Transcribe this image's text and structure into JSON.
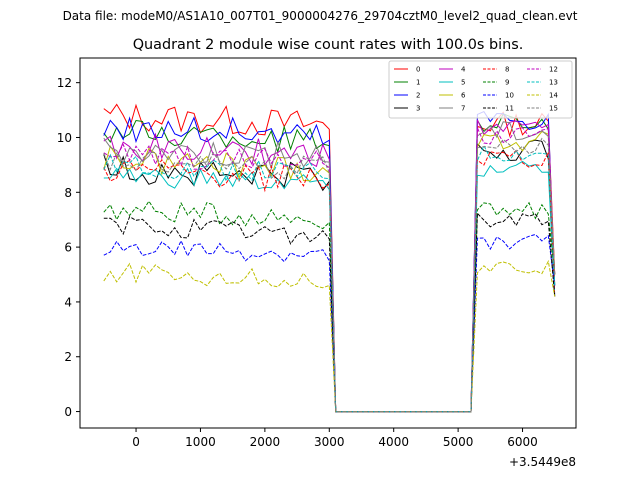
{
  "suptitle": "Data file: modeM0/AS1A10_007T01_9000004276_29704cztM0_level2_quad_clean.evt",
  "chart_data": {
    "type": "line",
    "title": "Quadrant 2 module wise count rates with 100.0s bins.",
    "xlabel": "",
    "ylabel": "",
    "x_offset_label": "+3.5449e8",
    "xlim": [
      -870,
      6830
    ],
    "ylim": [
      -0.6,
      12.9
    ],
    "xticks": [
      0,
      1000,
      2000,
      3000,
      4000,
      5000,
      6000
    ],
    "xtick_labels": [
      "0",
      "1000",
      "2000",
      "3000",
      "4000",
      "5000",
      "6000"
    ],
    "yticks": [
      0,
      2,
      4,
      6,
      8,
      10,
      12
    ],
    "ytick_labels": [
      "0",
      "2",
      "4",
      "6",
      "8",
      "10",
      "12"
    ],
    "grid": false,
    "legend_position": "top-right",
    "legend_columns": 4,
    "gti": {
      "seg1_start": -500,
      "seg1_end": 3000,
      "gap_start": 3100,
      "gap_end": 5200,
      "seg2_start": 5300,
      "seg2_end": 6500,
      "step": 100,
      "last_bin_value": 5
    },
    "series": [
      {
        "name": "0",
        "color": "#ff0000",
        "dash": "solid",
        "level1": 10.8,
        "level2": 10.5,
        "amp": 0.55
      },
      {
        "name": "1",
        "color": "#008000",
        "dash": "solid",
        "level1": 10.2,
        "level2": 10.6,
        "amp": 0.5
      },
      {
        "name": "2",
        "color": "#0000ff",
        "dash": "solid",
        "level1": 10.4,
        "level2": 10.7,
        "amp": 0.55
      },
      {
        "name": "3",
        "color": "#000000",
        "dash": "solid",
        "level1": 8.9,
        "level2": 9.5,
        "amp": 0.55
      },
      {
        "name": "4",
        "color": "#bf00bf",
        "dash": "solid",
        "level1": 9.7,
        "level2": 10.3,
        "amp": 0.5
      },
      {
        "name": "5",
        "color": "#00bfbf",
        "dash": "solid",
        "level1": 8.6,
        "level2": 8.9,
        "amp": 0.4
      },
      {
        "name": "6",
        "color": "#bfbf00",
        "dash": "solid",
        "level1": 9.2,
        "level2": 9.9,
        "amp": 0.5
      },
      {
        "name": "7",
        "color": "#808080",
        "dash": "solid",
        "level1": 9.6,
        "level2": 10.2,
        "amp": 0.5
      },
      {
        "name": "8",
        "color": "#ff0000",
        "dash": "dashed",
        "level1": 8.8,
        "level2": 9.2,
        "amp": 0.5
      },
      {
        "name": "9",
        "color": "#008000",
        "dash": "dashed",
        "level1": 7.4,
        "level2": 7.3,
        "amp": 0.4
      },
      {
        "name": "10",
        "color": "#0000ff",
        "dash": "dashed",
        "level1": 6.0,
        "level2": 6.2,
        "amp": 0.35
      },
      {
        "name": "11",
        "color": "#000000",
        "dash": "dashed",
        "level1": 6.8,
        "level2": 7.0,
        "amp": 0.4
      },
      {
        "name": "12",
        "color": "#bf00bf",
        "dash": "dashed",
        "level1": 9.4,
        "level2": 10.0,
        "amp": 0.45
      },
      {
        "name": "13",
        "color": "#00bfbf",
        "dash": "dashed",
        "level1": 9.0,
        "level2": 9.4,
        "amp": 0.4
      },
      {
        "name": "14",
        "color": "#bfbf00",
        "dash": "dashed",
        "level1": 5.1,
        "level2": 5.2,
        "amp": 0.35
      },
      {
        "name": "15",
        "color": "#808080",
        "dash": "dashed",
        "level1": 9.2,
        "level2": 9.7,
        "amp": 0.45
      }
    ]
  }
}
